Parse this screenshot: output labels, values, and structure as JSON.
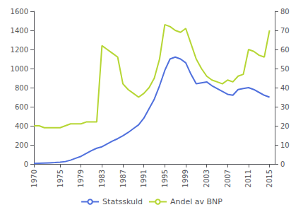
{
  "chart_data": {
    "type": "line",
    "x": [
      1970,
      1971,
      1972,
      1973,
      1974,
      1975,
      1976,
      1977,
      1978,
      1979,
      1980,
      1981,
      1982,
      1983,
      1984,
      1985,
      1986,
      1987,
      1988,
      1989,
      1990,
      1991,
      1992,
      1993,
      1994,
      1995,
      1996,
      1997,
      1998,
      1999,
      2000,
      2001,
      2002,
      2003,
      2004,
      2005,
      2006,
      2007,
      2008,
      2009,
      2010,
      2011,
      2012,
      2013,
      2014,
      2015
    ],
    "xlim": [
      1970,
      2016
    ],
    "xticks": [
      1970,
      1975,
      1979,
      1983,
      1987,
      1991,
      1995,
      1999,
      2003,
      2007,
      2011,
      2015
    ],
    "ylim": [
      0,
      1600
    ],
    "yticks": [
      0,
      200,
      400,
      600,
      800,
      1000,
      1200,
      1400,
      1600
    ],
    "y2lim": [
      0,
      80
    ],
    "y2ticks": [
      0,
      10,
      20,
      30,
      40,
      50,
      60,
      70,
      80
    ],
    "series": [
      {
        "name": "Statsskuld",
        "values": [
          5,
          8,
          10,
          12,
          14,
          18,
          25,
          40,
          60,
          80,
          110,
          140,
          165,
          180,
          210,
          240,
          265,
          295,
          330,
          370,
          410,
          480,
          580,
          680,
          820,
          980,
          1100,
          1120,
          1100,
          1060,
          940,
          840,
          850,
          860,
          820,
          790,
          760,
          730,
          720,
          780,
          790,
          800,
          780,
          750,
          720,
          700
        ]
      },
      {
        "name": "Andel av BNP",
        "axis": "y2",
        "values": [
          20,
          20,
          19,
          19,
          19,
          19,
          20,
          21,
          21,
          21,
          22,
          22,
          22,
          62,
          60,
          58,
          56,
          42,
          39,
          37,
          35,
          37,
          40,
          45,
          55,
          73,
          72,
          70,
          69,
          71,
          63,
          55,
          50,
          46,
          44,
          43,
          42,
          44,
          43,
          46,
          47,
          60,
          59,
          57,
          56,
          70
        ]
      }
    ],
    "legend": "bottom",
    "grid": false
  }
}
